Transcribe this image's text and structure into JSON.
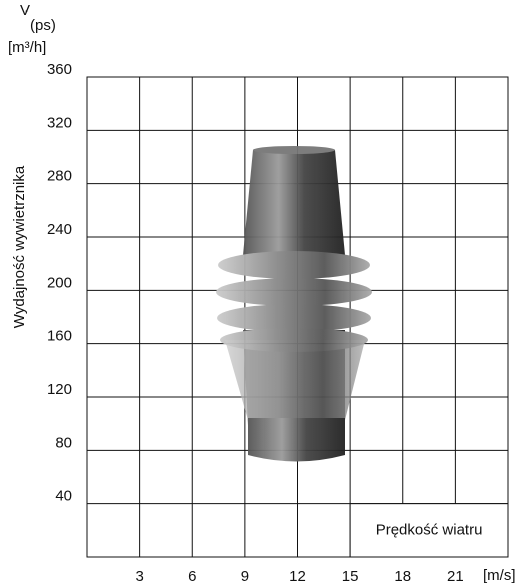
{
  "chart_data": {
    "type": "grid",
    "y_unit_symbol": "V",
    "y_unit_subscript": "(ps)",
    "y_unit": "[m³/h]",
    "ylabel": "Wydajność wywietrznika",
    "x_unit": "[m/s]",
    "annotation": "Prędkość wiatru",
    "xlim": [
      0,
      24
    ],
    "xticks": [
      3,
      6,
      9,
      12,
      15,
      18,
      21
    ],
    "ylim": [
      0,
      360
    ],
    "yticks": [
      40,
      80,
      120,
      160,
      200,
      240,
      280,
      320,
      360
    ],
    "grid": true
  }
}
